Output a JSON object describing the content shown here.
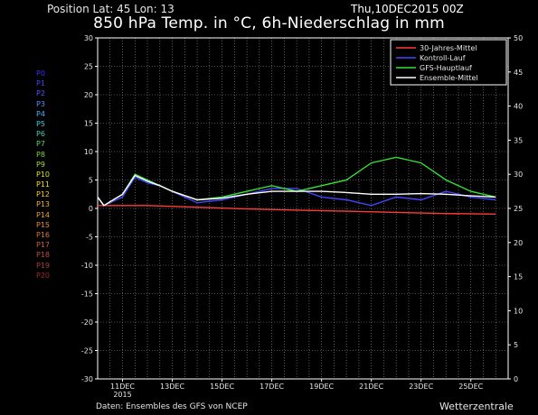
{
  "header": {
    "position_text": "Position   Lat: 45 Lon: 13",
    "datetime": "Thu,10DEC2015 00Z"
  },
  "chart_title": "850 hPa Temp. in °C, 6h-Niederschlag in mm",
  "footer": {
    "source": "Daten: Ensembles des GFS von NCEP",
    "brand": "Wetterzentrale"
  },
  "members": [
    {
      "label": "P0",
      "color": "#3333ff"
    },
    {
      "label": "P1",
      "color": "#4444ff"
    },
    {
      "label": "P2",
      "color": "#5555ff"
    },
    {
      "label": "P3",
      "color": "#5f8cff"
    },
    {
      "label": "P4",
      "color": "#46b4ff"
    },
    {
      "label": "P5",
      "color": "#3ecfe6"
    },
    {
      "label": "P6",
      "color": "#3fd4a8"
    },
    {
      "label": "P7",
      "color": "#56dc64"
    },
    {
      "label": "P8",
      "color": "#7ad83c"
    },
    {
      "label": "P9",
      "color": "#a8dc2c"
    },
    {
      "label": "P10",
      "color": "#d6e01e"
    },
    {
      "label": "P11",
      "color": "#f0e020"
    },
    {
      "label": "P12",
      "color": "#f4cc22"
    },
    {
      "label": "P13",
      "color": "#f4b42a"
    },
    {
      "label": "P14",
      "color": "#f0a028"
    },
    {
      "label": "P15",
      "color": "#ea8a2c"
    },
    {
      "label": "P16",
      "color": "#de7432"
    },
    {
      "label": "P17",
      "color": "#d05e36"
    },
    {
      "label": "P18",
      "color": "#c04a3c"
    },
    {
      "label": "P19",
      "color": "#b03a3c"
    },
    {
      "label": "P20",
      "color": "#a02c30"
    }
  ],
  "chart_data": {
    "type": "line",
    "title": "850 hPa Temp. in °C, 6h-Niederschlag in mm",
    "x_range": [
      "2015-12-10T00:00",
      "2015-12-26T12:00"
    ],
    "x_tick_labels": [
      "11DEC",
      "13DEC",
      "15DEC",
      "17DEC",
      "19DEC",
      "21DEC",
      "23DEC",
      "25DEC"
    ],
    "x_year_label": "2015",
    "x_grid_dates": [
      "2015-12-11",
      "2015-12-13",
      "2015-12-15",
      "2015-12-17",
      "2015-12-19",
      "2015-12-21",
      "2015-12-23",
      "2015-12-25"
    ],
    "x_grid_step_days": 0.5,
    "y_left": {
      "label": "°C",
      "range": [
        -30,
        30
      ],
      "ticks": [
        -30,
        -25,
        -20,
        -15,
        -10,
        -5,
        0,
        5,
        10,
        15,
        20,
        25,
        30
      ]
    },
    "y_right": {
      "label": "mm",
      "range": [
        0,
        50
      ],
      "ticks": [
        0,
        5,
        10,
        15,
        20,
        25,
        30,
        35,
        40,
        45,
        50
      ]
    },
    "grid": "dotted",
    "legend_position": "top-right",
    "series": [
      {
        "name": "30-Jahres-Mittel",
        "color": "#ff3b3b",
        "axis": "left",
        "x": [
          0,
          2,
          4,
          6,
          8,
          10,
          12,
          14,
          16
        ],
        "y": [
          0.5,
          0.5,
          0.2,
          -0.1,
          -0.3,
          -0.5,
          -0.7,
          -0.9,
          -1.0
        ]
      },
      {
        "name": "Kontroll-Lauf",
        "color": "#4545ff",
        "axis": "left",
        "x": [
          0,
          0.25,
          1,
          1.5,
          2,
          2.5,
          3,
          4,
          5,
          6,
          7,
          8,
          9,
          10,
          11,
          12,
          13,
          14,
          15,
          16
        ],
        "y": [
          2,
          0.5,
          2,
          5.5,
          4.5,
          4,
          3,
          1,
          1.5,
          2.5,
          3.5,
          3.5,
          2,
          1.5,
          0.5,
          2,
          1.5,
          3,
          2,
          1.5
        ]
      },
      {
        "name": "GFS-Hauptlauf",
        "color": "#35e035",
        "axis": "left",
        "x": [
          0,
          0.25,
          1,
          1.5,
          2,
          2.5,
          3,
          4,
          5,
          6,
          7,
          8,
          9,
          10,
          11,
          12,
          13,
          14,
          15,
          16
        ],
        "y": [
          2,
          0.5,
          2.5,
          6,
          5,
          4,
          3,
          1.5,
          2,
          3,
          4,
          3,
          4,
          5,
          8,
          9,
          8,
          5,
          3,
          2
        ]
      },
      {
        "name": "Ensemble-Mittel",
        "color": "#ffffff",
        "axis": "left",
        "x": [
          0,
          0.25,
          1,
          1.5,
          2,
          2.5,
          3,
          4,
          5,
          6,
          7,
          8,
          9,
          10,
          11,
          12,
          13,
          14,
          15,
          16
        ],
        "y": [
          2,
          0.5,
          2.5,
          5.8,
          4.8,
          4,
          3,
          1.5,
          1.8,
          2.5,
          3,
          3,
          3,
          2.8,
          2.5,
          2.5,
          2.6,
          2.5,
          2.2,
          2.0
        ]
      }
    ]
  }
}
